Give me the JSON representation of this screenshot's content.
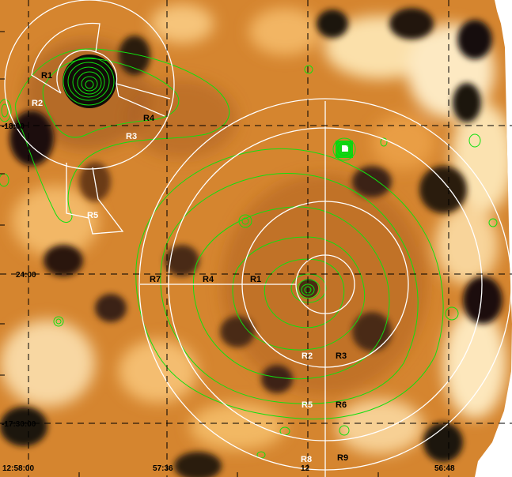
{
  "colors": {
    "background": "#ffffff",
    "map_dark": "#1b1210",
    "map_mid": "#9a4d1b",
    "map_orange": "#d9862f",
    "map_light": "#f3b15c",
    "map_pale": "#fde7ba",
    "contour": "#10e010",
    "region_outline": "#ffffff",
    "grid": "#000000"
  },
  "axes": {
    "dec_labels": [
      "-18:00",
      "24:00",
      "-17:30:00"
    ],
    "ra_labels": [
      "12:58:00",
      "57:36",
      "12",
      "56:48"
    ]
  },
  "regions": {
    "left_cluster": [
      "R1",
      "R2",
      "R3",
      "R4",
      "R5"
    ],
    "right_cluster_row1": [
      "R7",
      "R4",
      "R1"
    ],
    "right_cluster_row2": [
      "R2",
      "R3"
    ],
    "right_cluster_row3": [
      "R5",
      "R6"
    ],
    "right_cluster_row4": [
      "R8",
      "R9"
    ]
  }
}
